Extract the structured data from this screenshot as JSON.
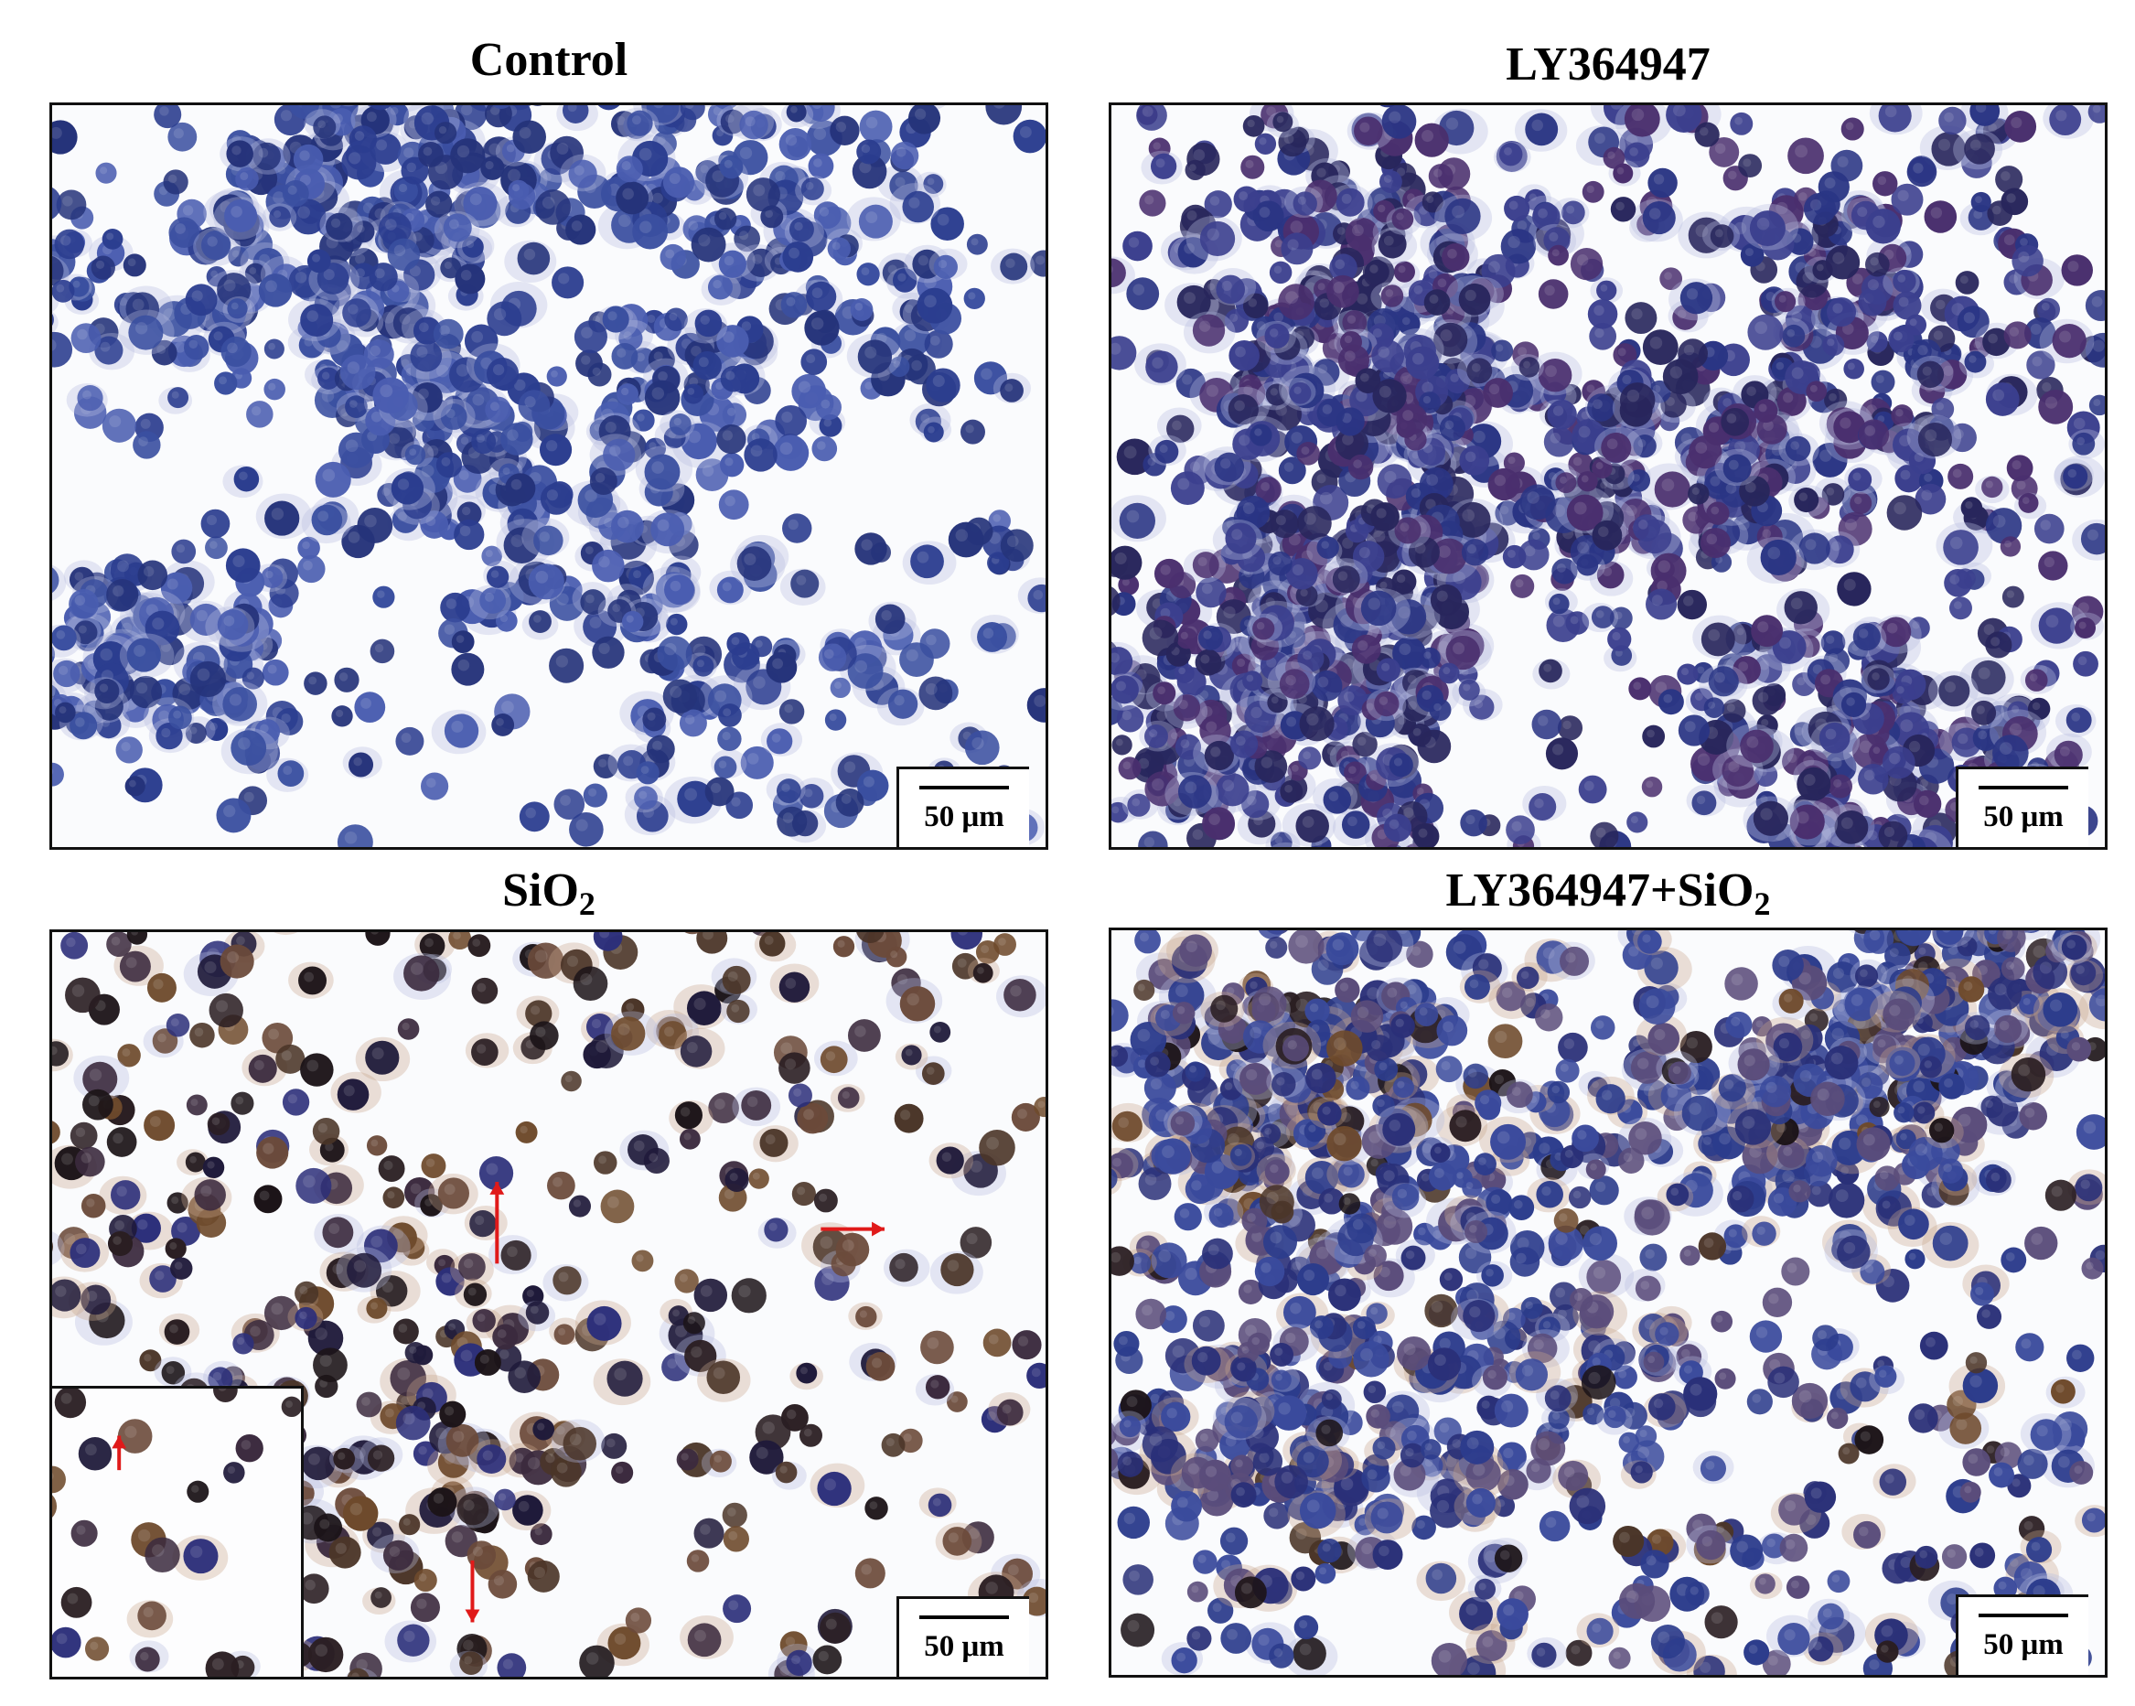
{
  "panels": [
    {
      "title": "Control",
      "scale_label": "50 μm",
      "cell_palette": [
        "#2b3d8f",
        "#3a4fa0",
        "#25337a",
        "#4a5db0"
      ]
    },
    {
      "title": "LY364947",
      "scale_label": "50 μm",
      "cell_palette": [
        "#2a3584",
        "#3b3f8e",
        "#4a2f6e",
        "#28265c"
      ]
    },
    {
      "title_base": "SiO",
      "title_subscript": "2",
      "scale_label": "50 μm",
      "cell_palette": [
        "#1f1a3a",
        "#3b2a3e",
        "#2c2f7a",
        "#6b4a3a"
      ]
    },
    {
      "title_base": "LY364947+SiO",
      "title_subscript": "2",
      "scale_label": "50 μm",
      "cell_palette": [
        "#2c3c8c",
        "#3a4a9c",
        "#2a3078",
        "#5a4c7a"
      ]
    }
  ],
  "arrow_color": "#e01a1a",
  "icons": [
    "red-arrow-icon"
  ]
}
